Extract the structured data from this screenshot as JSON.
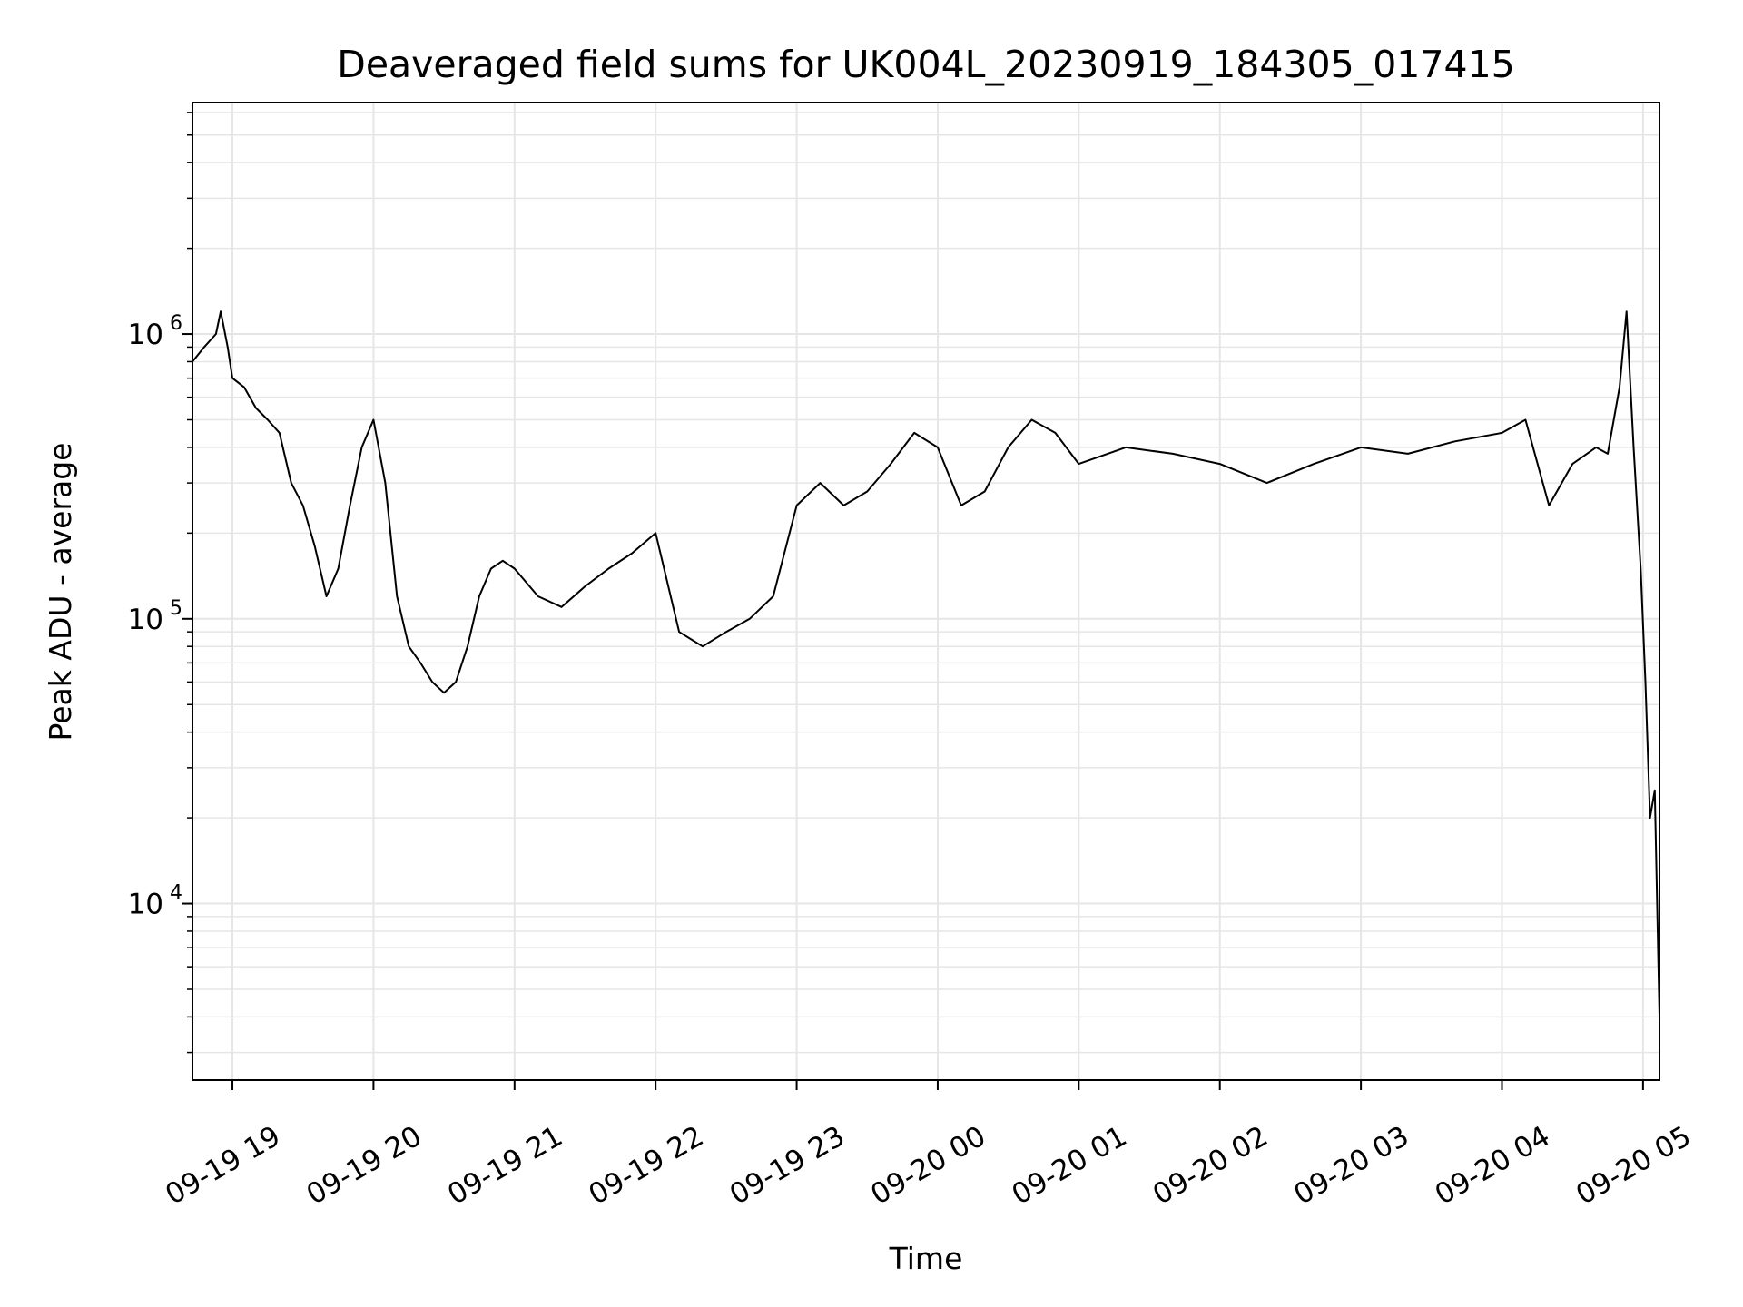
{
  "chart_data": {
    "type": "line",
    "title": "Deaveraged field sums for UK004L_20230919_184305_017415",
    "xlabel": "Time",
    "ylabel": "Peak ADU - average",
    "yscale": "log",
    "ylim": [
      2400,
      6500000
    ],
    "xlim": [
      "2023-09-19 18:43",
      "2023-09-20 05:07"
    ],
    "grid": true,
    "line_color": "#000000",
    "grid_color": "#e6e6e6",
    "x_ticks": [
      {
        "t": "2023-09-19 19:00",
        "label": "09-19 19"
      },
      {
        "t": "2023-09-19 20:00",
        "label": "09-19 20"
      },
      {
        "t": "2023-09-19 21:00",
        "label": "09-19 21"
      },
      {
        "t": "2023-09-19 22:00",
        "label": "09-19 22"
      },
      {
        "t": "2023-09-19 23:00",
        "label": "09-19 23"
      },
      {
        "t": "2023-09-20 00:00",
        "label": "09-20 00"
      },
      {
        "t": "2023-09-20 01:00",
        "label": "09-20 01"
      },
      {
        "t": "2023-09-20 02:00",
        "label": "09-20 02"
      },
      {
        "t": "2023-09-20 03:00",
        "label": "09-20 03"
      },
      {
        "t": "2023-09-20 04:00",
        "label": "09-20 04"
      },
      {
        "t": "2023-09-20 05:00",
        "label": "09-20 05"
      }
    ],
    "y_ticks": [
      {
        "value": 10000,
        "base": "10",
        "exp": "4"
      },
      {
        "value": 100000,
        "base": "10",
        "exp": "5"
      },
      {
        "value": 1000000,
        "base": "10",
        "exp": "6"
      }
    ],
    "series": [
      {
        "x": [
          "2023-09-19 18:43",
          "2023-09-19 18:48",
          "2023-09-19 18:53",
          "2023-09-19 18:55",
          "2023-09-19 18:58",
          "2023-09-19 19:00",
          "2023-09-19 19:05",
          "2023-09-19 19:10",
          "2023-09-19 19:15",
          "2023-09-19 19:20",
          "2023-09-19 19:25",
          "2023-09-19 19:30",
          "2023-09-19 19:35",
          "2023-09-19 19:40",
          "2023-09-19 19:45",
          "2023-09-19 19:50",
          "2023-09-19 19:55",
          "2023-09-19 20:00",
          "2023-09-19 20:05",
          "2023-09-19 20:10",
          "2023-09-19 20:15",
          "2023-09-19 20:20",
          "2023-09-19 20:25",
          "2023-09-19 20:30",
          "2023-09-19 20:35",
          "2023-09-19 20:40",
          "2023-09-19 20:45",
          "2023-09-19 20:50",
          "2023-09-19 20:55",
          "2023-09-19 21:00",
          "2023-09-19 21:10",
          "2023-09-19 21:20",
          "2023-09-19 21:30",
          "2023-09-19 21:40",
          "2023-09-19 21:50",
          "2023-09-19 22:00",
          "2023-09-19 22:10",
          "2023-09-19 22:20",
          "2023-09-19 22:30",
          "2023-09-19 22:40",
          "2023-09-19 22:50",
          "2023-09-19 23:00",
          "2023-09-19 23:10",
          "2023-09-19 23:20",
          "2023-09-19 23:30",
          "2023-09-19 23:40",
          "2023-09-19 23:50",
          "2023-09-20 00:00",
          "2023-09-20 00:10",
          "2023-09-20 00:20",
          "2023-09-20 00:30",
          "2023-09-20 00:40",
          "2023-09-20 00:50",
          "2023-09-20 01:00",
          "2023-09-20 01:20",
          "2023-09-20 01:40",
          "2023-09-20 02:00",
          "2023-09-20 02:20",
          "2023-09-20 02:40",
          "2023-09-20 03:00",
          "2023-09-20 03:20",
          "2023-09-20 03:40",
          "2023-09-20 04:00",
          "2023-09-20 04:10",
          "2023-09-20 04:20",
          "2023-09-20 04:30",
          "2023-09-20 04:40",
          "2023-09-20 04:45",
          "2023-09-20 04:50",
          "2023-09-20 04:53",
          "2023-09-20 04:56",
          "2023-09-20 04:59",
          "2023-09-20 05:01",
          "2023-09-20 05:03",
          "2023-09-20 05:05",
          "2023-09-20 05:07"
        ],
        "y": [
          800000,
          900000,
          1000000,
          1200000,
          900000,
          700000,
          650000,
          550000,
          500000,
          450000,
          300000,
          250000,
          180000,
          120000,
          150000,
          250000,
          400000,
          500000,
          300000,
          120000,
          80000,
          70000,
          60000,
          55000,
          60000,
          80000,
          120000,
          150000,
          160000,
          150000,
          120000,
          110000,
          130000,
          150000,
          170000,
          200000,
          90000,
          80000,
          90000,
          100000,
          120000,
          250000,
          300000,
          250000,
          280000,
          350000,
          450000,
          400000,
          250000,
          280000,
          400000,
          500000,
          450000,
          350000,
          400000,
          380000,
          350000,
          300000,
          350000,
          400000,
          380000,
          420000,
          450000,
          500000,
          250000,
          350000,
          400000,
          380000,
          650000,
          1200000,
          400000,
          150000,
          60000,
          20000,
          25000,
          4000
        ]
      }
    ]
  }
}
